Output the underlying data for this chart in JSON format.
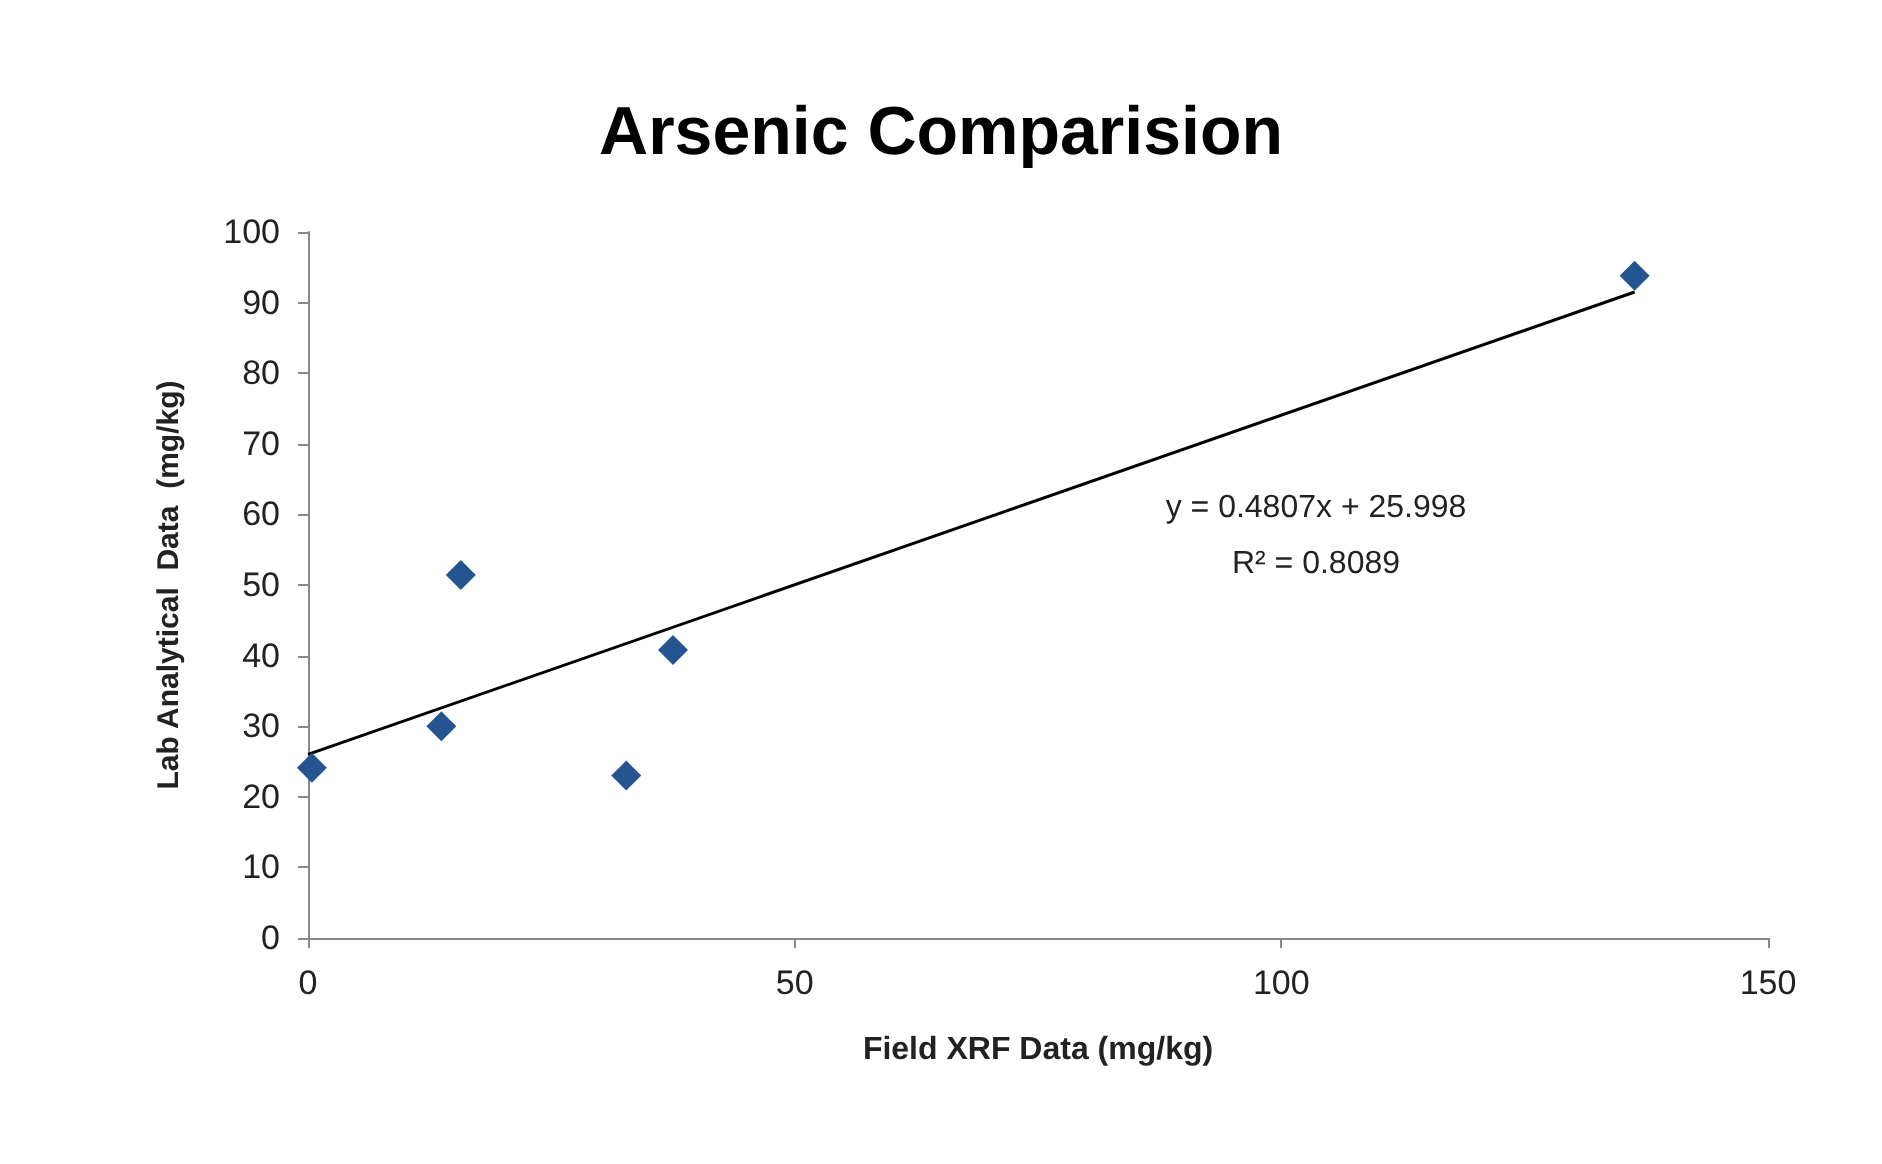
{
  "chart_data": {
    "type": "scatter",
    "title": "Arsenic Comparision",
    "xlabel": "Field XRF Data (mg/kg)",
    "ylabel": "Lab Analytical  Data  (mg/kg)",
    "series": [
      {
        "color": "#245590",
        "marker": "diamond",
        "x": [
          0.4,
          13.7,
          15.7,
          32.7,
          37.5,
          136.3
        ],
        "values": [
          24.1,
          30.0,
          51.4,
          23.0,
          40.8,
          93.8
        ]
      },
      {
        "type": "line",
        "color": "#000000",
        "marker": "none",
        "x": [
          0,
          136.3
        ],
        "values": [
          26.0,
          91.5
        ]
      }
    ],
    "annotations": [
      "y = 0.4807x + 25.998",
      "R² = 0.8089"
    ],
    "xlim": [
      0,
      150
    ],
    "xticks": [
      0,
      50,
      100,
      150
    ],
    "ylim": [
      0,
      100
    ],
    "yticks": [
      0,
      10,
      20,
      30,
      40,
      50,
      60,
      70,
      80,
      90,
      100
    ],
    "grid": false
  }
}
